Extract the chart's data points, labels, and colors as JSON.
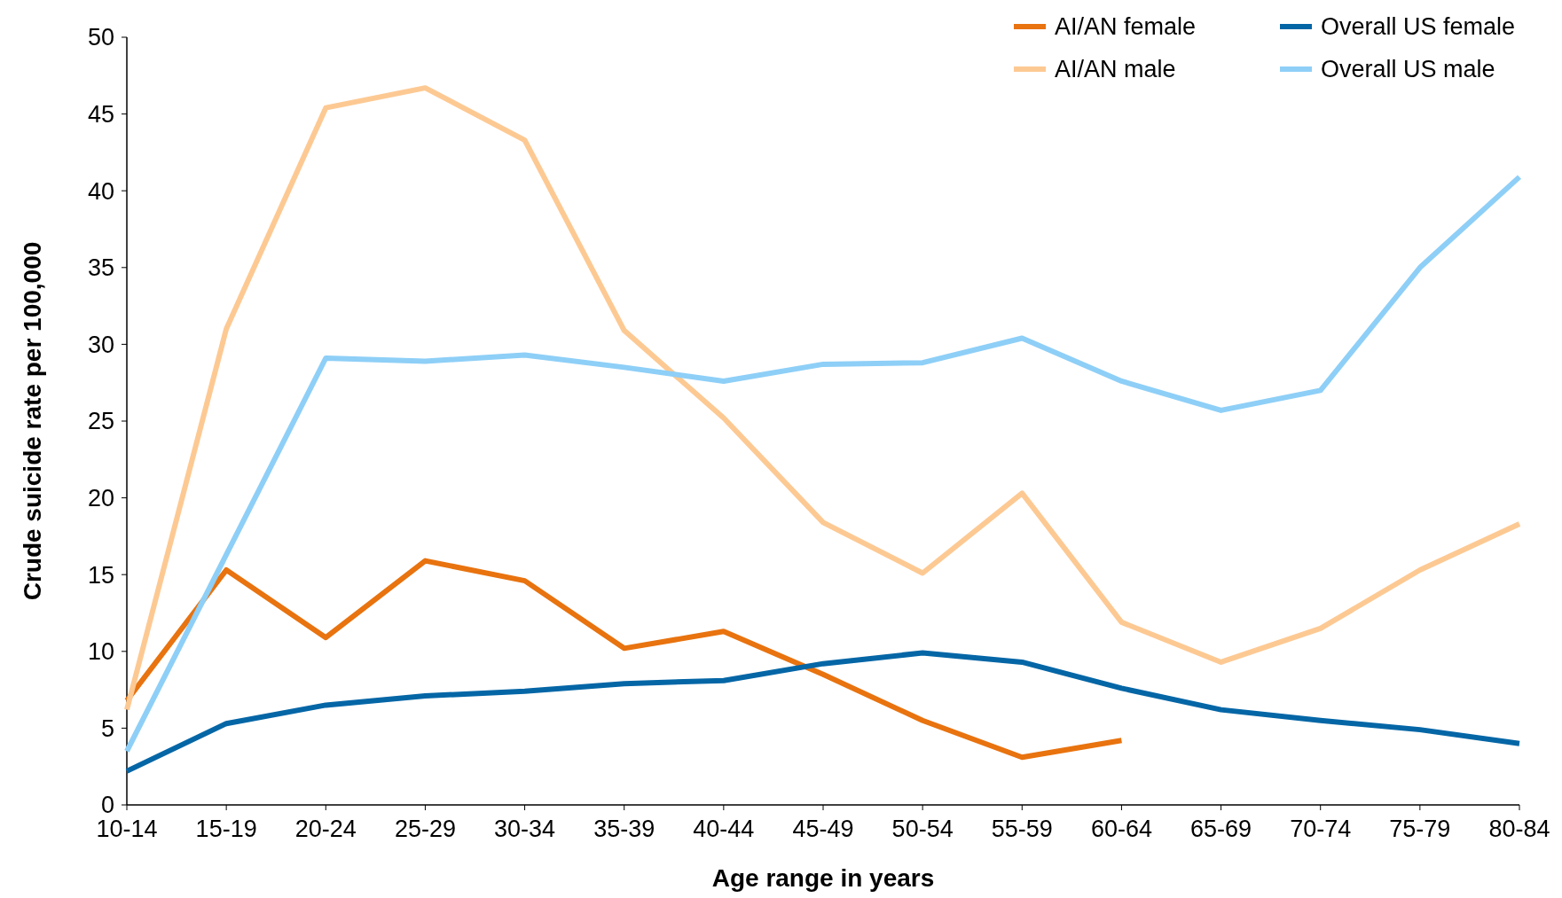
{
  "chart_data": {
    "type": "line",
    "xlabel": "Age range in years",
    "ylabel": "Crude suicide rate per 100,000",
    "categories": [
      "10-14",
      "15-19",
      "20-24",
      "25-29",
      "30-34",
      "35-39",
      "40-44",
      "45-49",
      "50-54",
      "55-59",
      "60-64",
      "65-69",
      "70-74",
      "75-79",
      "80-84"
    ],
    "ylim": [
      0,
      50
    ],
    "yticks": [
      0,
      5,
      10,
      15,
      20,
      25,
      30,
      35,
      40,
      45,
      50
    ],
    "grid": false,
    "legend": "top right",
    "marker": "none",
    "line_style": "solid",
    "series": [
      {
        "name": "AI/AN female",
        "color": "#e8730f",
        "values": [
          6.8,
          15.3,
          10.9,
          15.9,
          14.6,
          10.2,
          11.3,
          8.5,
          5.5,
          3.1,
          4.2,
          null,
          null,
          null,
          null
        ]
      },
      {
        "name": "AI/AN male",
        "color": "#fdc993",
        "values": [
          6.2,
          31.0,
          45.4,
          46.7,
          43.3,
          30.9,
          25.2,
          18.4,
          15.1,
          20.3,
          11.9,
          9.3,
          11.5,
          15.3,
          18.3
        ]
      },
      {
        "name": "Overall US female",
        "color": "#0566a6",
        "values": [
          2.2,
          5.3,
          6.5,
          7.1,
          7.4,
          7.9,
          8.1,
          9.2,
          9.9,
          9.3,
          7.6,
          6.2,
          5.5,
          4.9,
          4.0
        ]
      },
      {
        "name": "Overall US male",
        "color": "#8ecff7",
        "values": [
          3.5,
          16.3,
          29.1,
          28.9,
          29.3,
          28.5,
          27.6,
          28.7,
          28.8,
          30.4,
          27.6,
          25.7,
          27.0,
          35.0,
          40.9
        ]
      }
    ]
  }
}
